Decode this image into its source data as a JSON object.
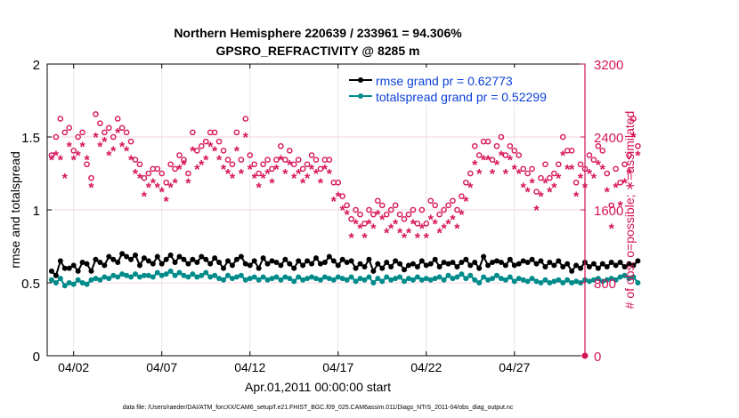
{
  "chart_data": {
    "type": "line",
    "title_line1": "Northern Hemisphere 220639 / 233961 = 94.306%",
    "title_line2": "GPSRO_REFRACTIVITY @ 8285 m",
    "xlabel": "Apr.01,2011 00:00:00 start",
    "ylabel_left": "rmse and totalspread",
    "ylabel_right": "# of obs: o=possible; ∗=assimilated",
    "footer": "data file: /Users/raeder/DAI/ATM_forcXX/CAM6_setup/f.e21.FHIST_BGC.f09_025.CAM6assim.011/Diags_NTrS_2011-04/obs_diag_output.nc",
    "xlim": [
      0.5,
      31
    ],
    "ylim_left": [
      0,
      2
    ],
    "ylim_right": [
      0,
      3200
    ],
    "x_ticks": [
      {
        "x": 2,
        "label": "04/02"
      },
      {
        "x": 7,
        "label": "04/07"
      },
      {
        "x": 12,
        "label": "04/12"
      },
      {
        "x": 17,
        "label": "04/17"
      },
      {
        "x": 22,
        "label": "04/22"
      },
      {
        "x": 27,
        "label": "04/27"
      }
    ],
    "y_ticks_left": [
      {
        "v": 0,
        "label": "0"
      },
      {
        "v": 0.5,
        "label": "0.5"
      },
      {
        "v": 1,
        "label": "1"
      },
      {
        "v": 1.5,
        "label": "1.5"
      },
      {
        "v": 2,
        "label": "2"
      }
    ],
    "y_ticks_right": [
      {
        "v": 0,
        "label": "0"
      },
      {
        "v": 800,
        "label": "800"
      },
      {
        "v": 1600,
        "label": "1600"
      },
      {
        "v": 2400,
        "label": "2400"
      },
      {
        "v": 3200,
        "label": "3200"
      }
    ],
    "step_days": 0.25,
    "x_start": 0.75,
    "legend": [
      {
        "name": "rmse grand pr = 0.62773",
        "color": "#000000"
      },
      {
        "name": "totalspread grand pr = 0.52299",
        "color": "#008b8b"
      }
    ],
    "series": [
      {
        "name": "rmse",
        "axis": "left",
        "color": "#000000",
        "values": [
          0.58,
          0.55,
          0.65,
          0.6,
          0.6,
          0.62,
          0.58,
          0.64,
          0.63,
          0.58,
          0.66,
          0.64,
          0.62,
          0.68,
          0.66,
          0.64,
          0.7,
          0.68,
          0.66,
          0.69,
          0.62,
          0.67,
          0.65,
          0.63,
          0.68,
          0.63,
          0.66,
          0.69,
          0.64,
          0.68,
          0.66,
          0.63,
          0.66,
          0.64,
          0.68,
          0.66,
          0.63,
          0.67,
          0.64,
          0.6,
          0.65,
          0.62,
          0.66,
          0.68,
          0.63,
          0.62,
          0.65,
          0.6,
          0.67,
          0.63,
          0.65,
          0.64,
          0.62,
          0.66,
          0.63,
          0.6,
          0.65,
          0.62,
          0.65,
          0.63,
          0.67,
          0.63,
          0.64,
          0.68,
          0.65,
          0.62,
          0.66,
          0.64,
          0.65,
          0.6,
          0.63,
          0.61,
          0.66,
          0.58,
          0.63,
          0.6,
          0.64,
          0.61,
          0.65,
          0.63,
          0.59,
          0.62,
          0.63,
          0.61,
          0.65,
          0.62,
          0.63,
          0.66,
          0.61,
          0.64,
          0.63,
          0.64,
          0.61,
          0.64,
          0.66,
          0.62,
          0.64,
          0.6,
          0.68,
          0.62,
          0.64,
          0.65,
          0.64,
          0.62,
          0.66,
          0.62,
          0.63,
          0.65,
          0.64,
          0.66,
          0.63,
          0.65,
          0.61,
          0.64,
          0.62,
          0.65,
          0.61,
          0.63,
          0.58,
          0.62,
          0.6,
          0.64,
          0.61,
          0.63,
          0.6,
          0.63,
          0.61,
          0.64,
          0.62,
          0.64,
          0.61,
          0.63,
          0.62,
          0.65
        ]
      },
      {
        "name": "totalspread",
        "axis": "left",
        "color": "#008b8b",
        "values": [
          0.52,
          0.5,
          0.53,
          0.48,
          0.5,
          0.49,
          0.52,
          0.5,
          0.49,
          0.52,
          0.53,
          0.52,
          0.54,
          0.53,
          0.55,
          0.54,
          0.56,
          0.55,
          0.54,
          0.56,
          0.54,
          0.55,
          0.55,
          0.54,
          0.57,
          0.55,
          0.56,
          0.58,
          0.55,
          0.57,
          0.55,
          0.54,
          0.56,
          0.54,
          0.55,
          0.57,
          0.54,
          0.55,
          0.53,
          0.52,
          0.55,
          0.53,
          0.54,
          0.55,
          0.52,
          0.53,
          0.54,
          0.52,
          0.54,
          0.52,
          0.53,
          0.54,
          0.52,
          0.54,
          0.53,
          0.51,
          0.54,
          0.52,
          0.53,
          0.54,
          0.53,
          0.52,
          0.54,
          0.53,
          0.52,
          0.54,
          0.53,
          0.52,
          0.54,
          0.51,
          0.53,
          0.52,
          0.54,
          0.5,
          0.53,
          0.51,
          0.54,
          0.52,
          0.53,
          0.54,
          0.51,
          0.53,
          0.52,
          0.54,
          0.52,
          0.53,
          0.52,
          0.53,
          0.54,
          0.52,
          0.55,
          0.53,
          0.54,
          0.56,
          0.53,
          0.55,
          0.52,
          0.5,
          0.54,
          0.52,
          0.53,
          0.55,
          0.53,
          0.52,
          0.54,
          0.51,
          0.53,
          0.52,
          0.51,
          0.53,
          0.51,
          0.5,
          0.52,
          0.5,
          0.51,
          0.52,
          0.5,
          0.52,
          0.5,
          0.51,
          0.5,
          0.52,
          0.51,
          0.52,
          0.53,
          0.51,
          0.52,
          0.53,
          0.52,
          0.54,
          0.55,
          0.53,
          0.54,
          0.5
        ]
      },
      {
        "name": "obs possible",
        "axis": "right",
        "color": "#d6145a",
        "marker": "o",
        "values": [
          2200,
          2400,
          2600,
          2450,
          2500,
          2250,
          2400,
          2450,
          2100,
          1950,
          2650,
          2550,
          2450,
          2500,
          2400,
          2600,
          2500,
          2450,
          2350,
          2150,
          2100,
          1950,
          2000,
          2050,
          2050,
          2000,
          1900,
          2100,
          2050,
          2200,
          2150,
          2000,
          2450,
          2250,
          2300,
          2350,
          2450,
          2450,
          2350,
          2250,
          2150,
          2100,
          2450,
          2150,
          2600,
          2200,
          2100,
          2000,
          2100,
          2150,
          2050,
          2150,
          2300,
          2150,
          2250,
          2100,
          2150,
          2050,
          2100,
          2200,
          2150,
          2050,
          2150,
          2150,
          1900,
          1900,
          1750,
          1650,
          1500,
          1600,
          1550,
          1450,
          1600,
          1550,
          1700,
          1650,
          1550,
          1600,
          1650,
          1550,
          1500,
          1550,
          1600,
          1450,
          1600,
          1450,
          1700,
          1650,
          1550,
          1600,
          1650,
          1700,
          1600,
          1750,
          1900,
          2000,
          2300,
          2200,
          2350,
          2350,
          2150,
          2300,
          2400,
          2200,
          2300,
          2250,
          2200,
          2050,
          2000,
          2050,
          1800,
          1950,
          2100,
          1950,
          2000,
          2100,
          2400,
          2250,
          2250,
          1900,
          2100,
          2050,
          2200,
          2150,
          2300,
          2250,
          2000,
          1650,
          2050,
          1900,
          2100,
          2200,
          2600,
          2300
        ]
      },
      {
        "name": "obs assimilated",
        "axis": "right",
        "color": "#d6145a",
        "marker": "*",
        "values": [
          2150,
          2200,
          2150,
          1950,
          2300,
          2150,
          2200,
          2300,
          2150,
          1850,
          2400,
          2300,
          2350,
          2200,
          2250,
          2450,
          2300,
          2250,
          2150,
          2000,
          1950,
          1750,
          1850,
          1900,
          1850,
          1800,
          1700,
          1850,
          1900,
          2050,
          2100,
          1900,
          2250,
          2050,
          2100,
          2150,
          2300,
          2250,
          2150,
          2050,
          2000,
          1950,
          2250,
          2000,
          2400,
          2050,
          1950,
          1850,
          1950,
          2000,
          1900,
          2050,
          2150,
          2000,
          2100,
          1950,
          2000,
          1900,
          1950,
          2050,
          2000,
          1900,
          2050,
          2000,
          1700,
          1750,
          1600,
          1550,
          1300,
          1450,
          1400,
          1300,
          1450,
          1400,
          1550,
          1500,
          1350,
          1400,
          1450,
          1350,
          1300,
          1350,
          1450,
          1300,
          1400,
          1300,
          1500,
          1450,
          1350,
          1400,
          1450,
          1500,
          1400,
          1550,
          1700,
          1850,
          2100,
          2000,
          2150,
          2150,
          2000,
          2100,
          2200,
          2000,
          2150,
          2050,
          2000,
          1850,
          1800,
          1900,
          1600,
          1750,
          1900,
          1800,
          1850,
          1950,
          2200,
          2050,
          2050,
          1750,
          1950,
          1850,
          2000,
          1950,
          2100,
          2050,
          1800,
          1400,
          1850,
          1650,
          1900,
          2000,
          2400,
          2200
        ]
      }
    ]
  }
}
